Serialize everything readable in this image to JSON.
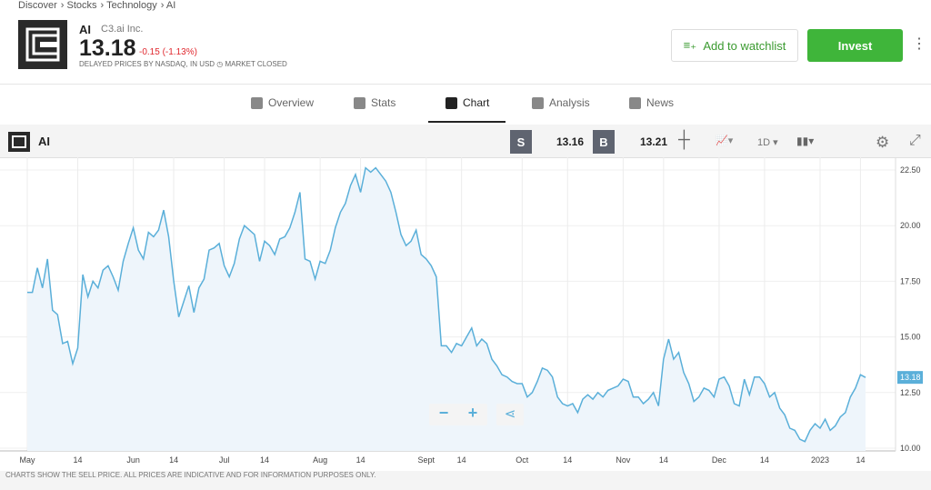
{
  "breadcrumb": [
    "Discover",
    "Stocks",
    "Technology",
    "AI"
  ],
  "header": {
    "ticker": "AI",
    "company": "C3.ai Inc.",
    "price": "13.18",
    "change": "-0.15 (-1.13%)",
    "note": "DELAYED PRICES BY NASDAQ, IN USD",
    "status": "MARKET CLOSED",
    "watchlist": "Add to watchlist",
    "invest": "Invest"
  },
  "tabs": [
    "Overview",
    "Stats",
    "Chart",
    "Analysis",
    "News"
  ],
  "toolbar": {
    "symbol": "AI",
    "sell_label": "S",
    "sell": "13.16",
    "buy_label": "B",
    "buy": "13.21",
    "interval": "1D"
  },
  "footer": "CHARTS SHOW THE SELL PRICE. ALL PRICES ARE INDICATIVE AND FOR INFORMATION PURPOSES ONLY.",
  "chart_data": {
    "type": "line",
    "color": "#5aafd9",
    "fill": "#eef5fb",
    "last_price": 13.18,
    "values": [
      17.0,
      17.0,
      18.1,
      17.2,
      18.5,
      16.2,
      16.0,
      14.7,
      14.8,
      13.8,
      14.5,
      17.8,
      16.8,
      17.5,
      17.2,
      18.0,
      18.2,
      17.7,
      17.1,
      18.4,
      19.2,
      19.9,
      18.9,
      18.5,
      19.7,
      19.5,
      19.8,
      20.7,
      19.5,
      17.5,
      15.9,
      16.6,
      17.3,
      16.1,
      17.2,
      17.6,
      18.9,
      19.0,
      19.2,
      18.2,
      17.7,
      18.3,
      19.4,
      20.0,
      19.8,
      19.6,
      18.4,
      19.3,
      19.1,
      18.7,
      19.4,
      19.5,
      19.9,
      20.6,
      21.5,
      18.5,
      18.4,
      17.6,
      18.4,
      18.3,
      18.9,
      19.9,
      20.6,
      21.0,
      21.8,
      22.3,
      21.5,
      22.6,
      22.4,
      22.6,
      22.3,
      22.0,
      21.5,
      20.6,
      19.6,
      19.1,
      19.3,
      19.8,
      18.7,
      18.5,
      18.2,
      17.7,
      14.6,
      14.6,
      14.3,
      14.7,
      14.6,
      15.0,
      15.4,
      14.6,
      14.9,
      14.7,
      14.0,
      13.7,
      13.3,
      13.2,
      13.0,
      12.9,
      12.9,
      12.3,
      12.5,
      13.0,
      13.6,
      13.5,
      13.2,
      12.3,
      12.0,
      11.9,
      12.0,
      11.6,
      12.2,
      12.4,
      12.2,
      12.5,
      12.3,
      12.6,
      12.7,
      12.8,
      13.1,
      13.0,
      12.3,
      12.3,
      12.0,
      12.2,
      12.5,
      11.9,
      14.0,
      14.9,
      14.0,
      14.3,
      13.4,
      12.9,
      12.1,
      12.3,
      12.7,
      12.6,
      12.3,
      13.1,
      13.2,
      12.8,
      12.0,
      11.9,
      13.1,
      12.4,
      13.2,
      13.2,
      12.9,
      12.3,
      12.5,
      11.8,
      11.5,
      10.9,
      10.8,
      10.4,
      10.3,
      10.8,
      11.1,
      10.9,
      11.3,
      10.8,
      11.0,
      11.4,
      11.6,
      12.3,
      12.7,
      13.3,
      13.18
    ],
    "xlim": [
      0,
      166
    ],
    "xticks": [
      {
        "value": 0,
        "label": "May"
      },
      {
        "value": 10,
        "label": "14"
      },
      {
        "value": 21,
        "label": "Jun"
      },
      {
        "value": 29,
        "label": "14"
      },
      {
        "value": 39,
        "label": "Jul"
      },
      {
        "value": 47,
        "label": "14"
      },
      {
        "value": 58,
        "label": "Aug"
      },
      {
        "value": 66,
        "label": "14"
      },
      {
        "value": 79,
        "label": "Sept"
      },
      {
        "value": 86,
        "label": "14"
      },
      {
        "value": 98,
        "label": "Oct"
      },
      {
        "value": 107,
        "label": "14"
      },
      {
        "value": 118,
        "label": "Nov"
      },
      {
        "value": 126,
        "label": "14"
      },
      {
        "value": 137,
        "label": "Dec"
      },
      {
        "value": 146,
        "label": "14"
      },
      {
        "value": 157,
        "label": "2023"
      },
      {
        "value": 165,
        "label": "14"
      }
    ],
    "ylim": [
      10,
      22.5
    ],
    "yticks": [
      {
        "value": 10,
        "label": "10.00"
      },
      {
        "value": 12.5,
        "label": "12.50"
      },
      {
        "value": 15,
        "label": "15.00"
      },
      {
        "value": 17.5,
        "label": "17.50"
      },
      {
        "value": 20,
        "label": "20.00"
      },
      {
        "value": 22.5,
        "label": "22.50"
      }
    ]
  }
}
